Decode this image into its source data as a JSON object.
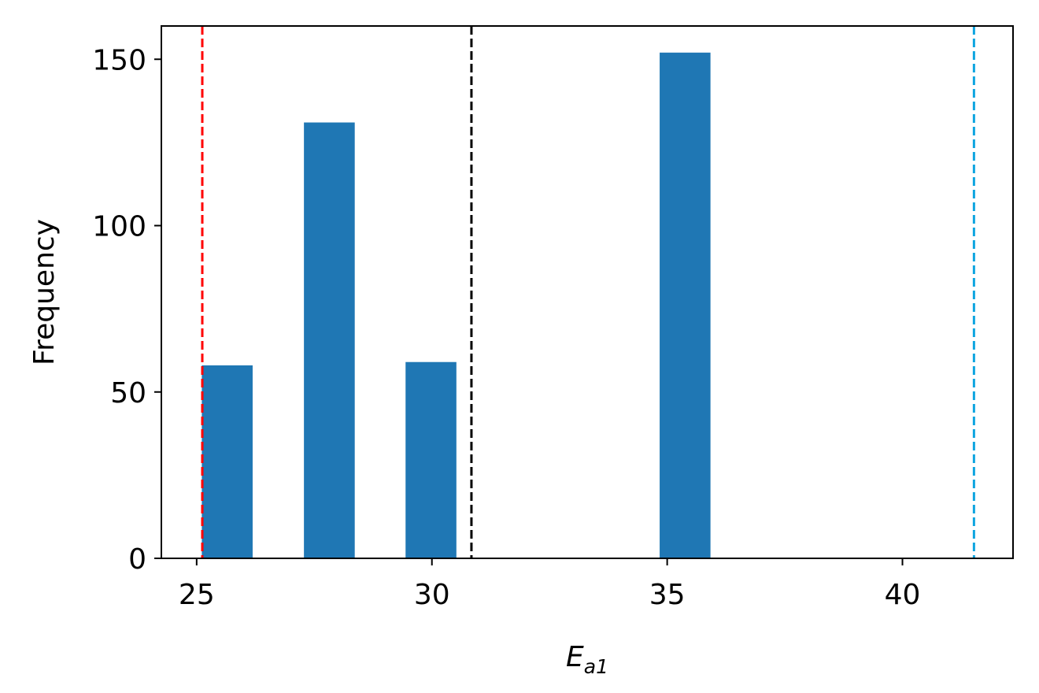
{
  "chart_data": {
    "type": "bar",
    "title": "",
    "xlabel": "E",
    "xlabel_subscript": "a1",
    "ylabel": "Frequency",
    "xlim": [
      24.25,
      42.35
    ],
    "ylim": [
      0,
      160
    ],
    "xticks": [
      25,
      30,
      35,
      40
    ],
    "xtick_labels": [
      "25",
      "30",
      "35",
      "40"
    ],
    "yticks": [
      0,
      50,
      100,
      150
    ],
    "ytick_labels": [
      "0",
      "50",
      "100",
      "150"
    ],
    "bar_width": 1.08,
    "bars": [
      {
        "x": 25.65,
        "value": 58
      },
      {
        "x": 27.82,
        "value": 131
      },
      {
        "x": 29.98,
        "value": 59
      },
      {
        "x": 35.38,
        "value": 152
      }
    ],
    "reference_lines": [
      {
        "x": 25.12,
        "color": "#ff0000"
      },
      {
        "x": 30.84,
        "color": "#000000"
      },
      {
        "x": 41.52,
        "color": "#0ea5e0"
      }
    ],
    "bar_color": "#1f77b4",
    "grid": false,
    "legend": "none"
  }
}
